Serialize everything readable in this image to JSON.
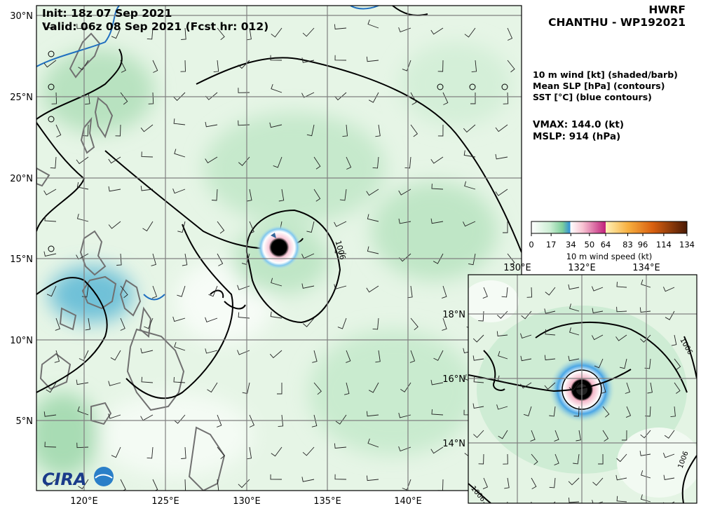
{
  "header": {
    "init": "Init:   18z 07 Sep 2021",
    "valid": "Valid: 06z 08 Sep 2021 (Fcst hr: 012)",
    "model": "HWRF",
    "storm": "CHANTHU - WP192021"
  },
  "legend": {
    "items": [
      "10 m wind [kt] (shaded/barb)",
      "Mean SLP [hPa] (contours)",
      "SST [°C] (blue contours)"
    ]
  },
  "stats": {
    "vmax": "VMAX: 144.0 (kt)",
    "mslp": "MSLP:  914 (hPa)"
  },
  "colorbar": {
    "ticks": [
      "0",
      "17",
      "34",
      "50",
      "64",
      "83",
      "96",
      "114",
      "134"
    ],
    "label": "10 m wind speed (kt)",
    "colors": [
      "#ffffff",
      "#9ad6a8",
      "#2f8fd8",
      "#ffffff",
      "#f4b6c8",
      "#c0207a",
      "#ffe9a0",
      "#f3a030",
      "#d05010",
      "#5a2008"
    ]
  },
  "main_map": {
    "x_ticks": [
      "120°E",
      "125°E",
      "130°E",
      "135°E",
      "140°E"
    ],
    "y_ticks": [
      "30°N",
      "25°N",
      "20°N",
      "15°N",
      "10°N",
      "5°N"
    ],
    "contour_label": "1006"
  },
  "inset_map": {
    "x_ticks": [
      "130°E",
      "132°E",
      "134°E"
    ],
    "y_ticks": [
      "18°N",
      "16°N",
      "14°N"
    ],
    "contour_labels": [
      "1006",
      "1006",
      "1006"
    ]
  },
  "logo": {
    "text": "CIRA"
  },
  "colors": {
    "land_outline": "#707070",
    "sst_contour": "#1f6fc0",
    "slp_contour": "#000000",
    "grid": "#808080"
  }
}
